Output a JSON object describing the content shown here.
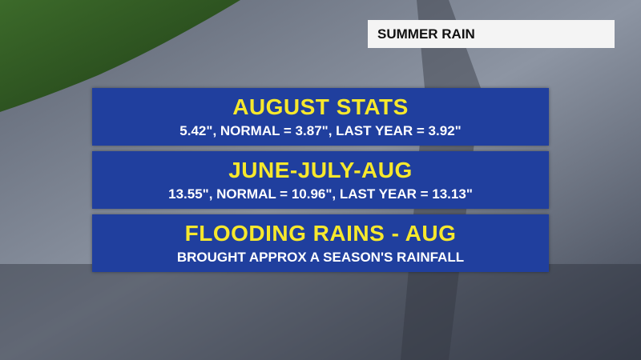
{
  "label": "SUMMER RAIN",
  "panels": [
    {
      "title": "AUGUST STATS",
      "detail": "5.42\", NORMAL = 3.87\", LAST YEAR = 3.92\""
    },
    {
      "title": "JUNE-JULY-AUG",
      "detail": "13.55\", NORMAL = 10.96\", LAST YEAR = 13.13\""
    },
    {
      "title": "FLOODING RAINS - AUG",
      "detail": "BROUGHT APPROX A SEASON'S RAINFALL"
    }
  ]
}
